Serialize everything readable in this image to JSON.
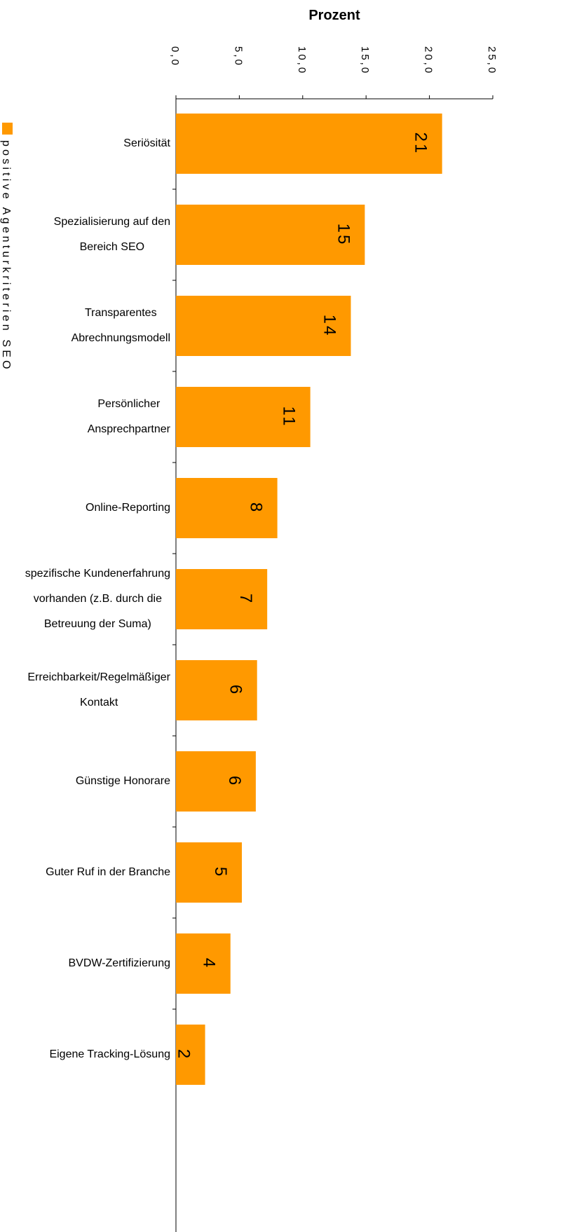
{
  "chart_data": {
    "type": "bar",
    "orientation": "horizontal",
    "title": "Prozent",
    "legend": "left",
    "categories": [
      "Seriösität",
      "Spezialisierung auf den\nBereich SEO",
      "Transparentes\nAbrechnungsmodell",
      "Persönlicher\nAnsprechpartner",
      "Online-Reporting",
      "spezifische Kundenerfahrung\nvorhanden (z.B. durch die\nBetreuung der Suma)",
      "Erreichbarkeit/Regelmäßiger\nKontakt",
      "Günstige Honorare",
      "Guter Ruf in der Branche",
      "BVDW-Zertifizierung",
      "Eigene Tracking-Lösung"
    ],
    "series": [
      {
        "name": "positive Agenturkriterien SEO",
        "color": "#ff9900",
        "values": [
          21,
          14.9,
          13.8,
          10.6,
          8.0,
          7.2,
          6.4,
          6.3,
          5.2,
          4.3,
          2.3
        ],
        "value_labels": [
          "21",
          "15",
          "14",
          "11",
          "8",
          "7",
          "6",
          "6",
          "5",
          "4",
          "2"
        ]
      }
    ],
    "xlim": [
      0,
      25
    ],
    "xticks": [
      {
        "value": 0,
        "label": "0,0"
      },
      {
        "value": 5,
        "label": "5,0"
      },
      {
        "value": 10,
        "label": "10,0"
      },
      {
        "value": 15,
        "label": "15,0"
      },
      {
        "value": 20,
        "label": "20,0"
      },
      {
        "value": 25,
        "label": "25,0"
      }
    ]
  }
}
